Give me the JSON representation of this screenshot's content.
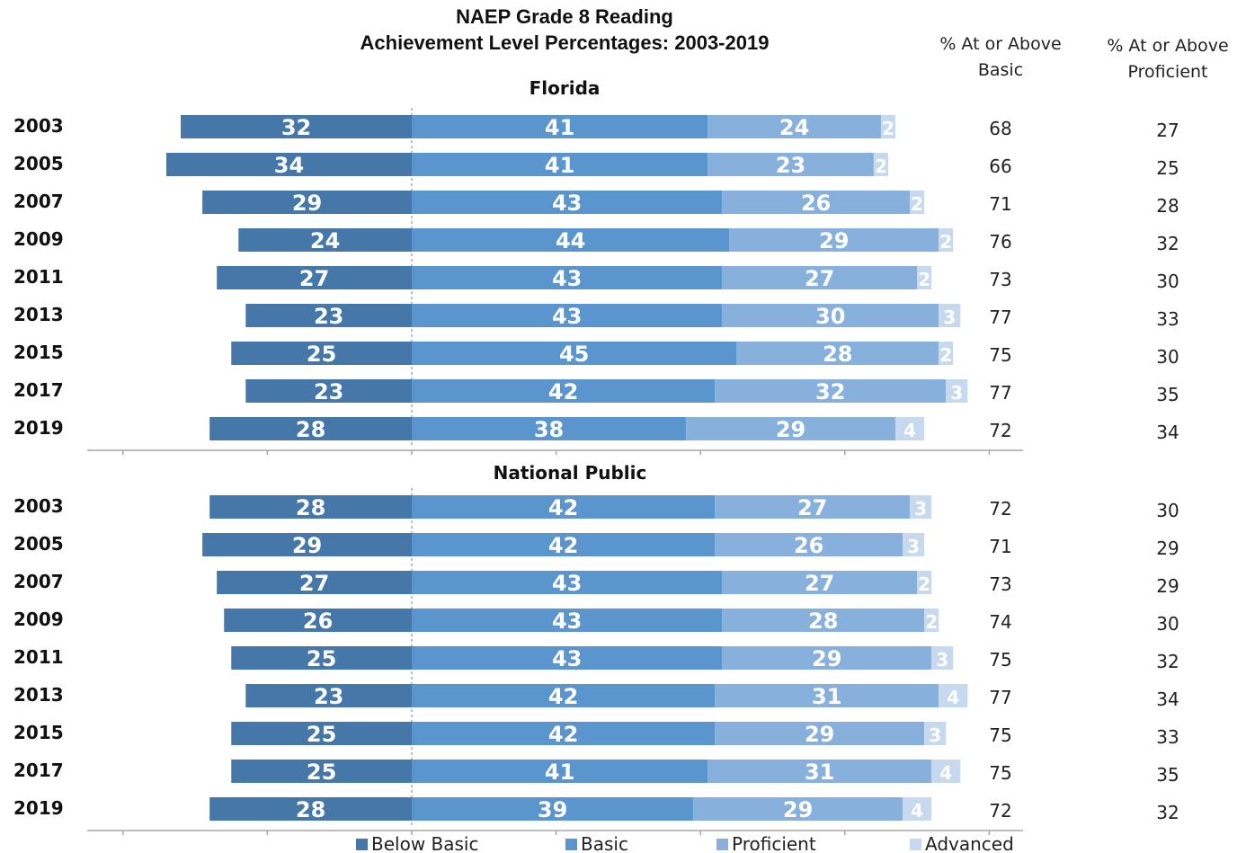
{
  "chart_data": {
    "type": "bar",
    "title_line1": "NAEP Grade 8 Reading",
    "title_line2": "Achievement Level Percentages: 2003-2019",
    "column_headers": {
      "basic_line1": "% At or Above",
      "basic_line2": "Basic",
      "proficient_line1": "% At or Above",
      "proficient_line2": "Proficient"
    },
    "legend": [
      "Below Basic",
      "Basic",
      "Proficient",
      "Advanced"
    ],
    "colors": {
      "below_basic": "#4677a9",
      "basic": "#5b95cd",
      "proficient": "#87b0dc",
      "advanced": "#c6d9ef",
      "axis": "#a6a6a6"
    },
    "panels": [
      {
        "name": "Florida",
        "rows": [
          {
            "year": "2003",
            "below_basic": 32,
            "basic": 41,
            "proficient": 24,
            "advanced": 2,
            "at_or_above_basic": 68,
            "at_or_above_proficient": 27
          },
          {
            "year": "2005",
            "below_basic": 34,
            "basic": 41,
            "proficient": 23,
            "advanced": 2,
            "at_or_above_basic": 66,
            "at_or_above_proficient": 25
          },
          {
            "year": "2007",
            "below_basic": 29,
            "basic": 43,
            "proficient": 26,
            "advanced": 2,
            "at_or_above_basic": 71,
            "at_or_above_proficient": 28
          },
          {
            "year": "2009",
            "below_basic": 24,
            "basic": 44,
            "proficient": 29,
            "advanced": 2,
            "at_or_above_basic": 76,
            "at_or_above_proficient": 32
          },
          {
            "year": "2011",
            "below_basic": 27,
            "basic": 43,
            "proficient": 27,
            "advanced": 2,
            "at_or_above_basic": 73,
            "at_or_above_proficient": 30
          },
          {
            "year": "2013",
            "below_basic": 23,
            "basic": 43,
            "proficient": 30,
            "advanced": 3,
            "at_or_above_basic": 77,
            "at_or_above_proficient": 33
          },
          {
            "year": "2015",
            "below_basic": 25,
            "basic": 45,
            "proficient": 28,
            "advanced": 2,
            "at_or_above_basic": 75,
            "at_or_above_proficient": 30
          },
          {
            "year": "2017",
            "below_basic": 23,
            "basic": 42,
            "proficient": 32,
            "advanced": 3,
            "at_or_above_basic": 77,
            "at_or_above_proficient": 35
          },
          {
            "year": "2019",
            "below_basic": 28,
            "basic": 38,
            "proficient": 29,
            "advanced": 4,
            "at_or_above_basic": 72,
            "at_or_above_proficient": 34
          }
        ]
      },
      {
        "name": "National Public",
        "rows": [
          {
            "year": "2003",
            "below_basic": 28,
            "basic": 42,
            "proficient": 27,
            "advanced": 3,
            "at_or_above_basic": 72,
            "at_or_above_proficient": 30
          },
          {
            "year": "2005",
            "below_basic": 29,
            "basic": 42,
            "proficient": 26,
            "advanced": 3,
            "at_or_above_basic": 71,
            "at_or_above_proficient": 29
          },
          {
            "year": "2007",
            "below_basic": 27,
            "basic": 43,
            "proficient": 27,
            "advanced": 2,
            "at_or_above_basic": 73,
            "at_or_above_proficient": 29
          },
          {
            "year": "2009",
            "below_basic": 26,
            "basic": 43,
            "proficient": 28,
            "advanced": 2,
            "at_or_above_basic": 74,
            "at_or_above_proficient": 30
          },
          {
            "year": "2011",
            "below_basic": 25,
            "basic": 43,
            "proficient": 29,
            "advanced": 3,
            "at_or_above_basic": 75,
            "at_or_above_proficient": 32
          },
          {
            "year": "2013",
            "below_basic": 23,
            "basic": 42,
            "proficient": 31,
            "advanced": 4,
            "at_or_above_basic": 77,
            "at_or_above_proficient": 34
          },
          {
            "year": "2015",
            "below_basic": 25,
            "basic": 42,
            "proficient": 29,
            "advanced": 3,
            "at_or_above_basic": 75,
            "at_or_above_proficient": 33
          },
          {
            "year": "2017",
            "below_basic": 25,
            "basic": 41,
            "proficient": 31,
            "advanced": 4,
            "at_or_above_basic": 75,
            "at_or_above_proficient": 35
          },
          {
            "year": "2019",
            "below_basic": 28,
            "basic": 39,
            "proficient": 29,
            "advanced": 4,
            "at_or_above_basic": 72,
            "at_or_above_proficient": 32
          }
        ]
      }
    ]
  }
}
